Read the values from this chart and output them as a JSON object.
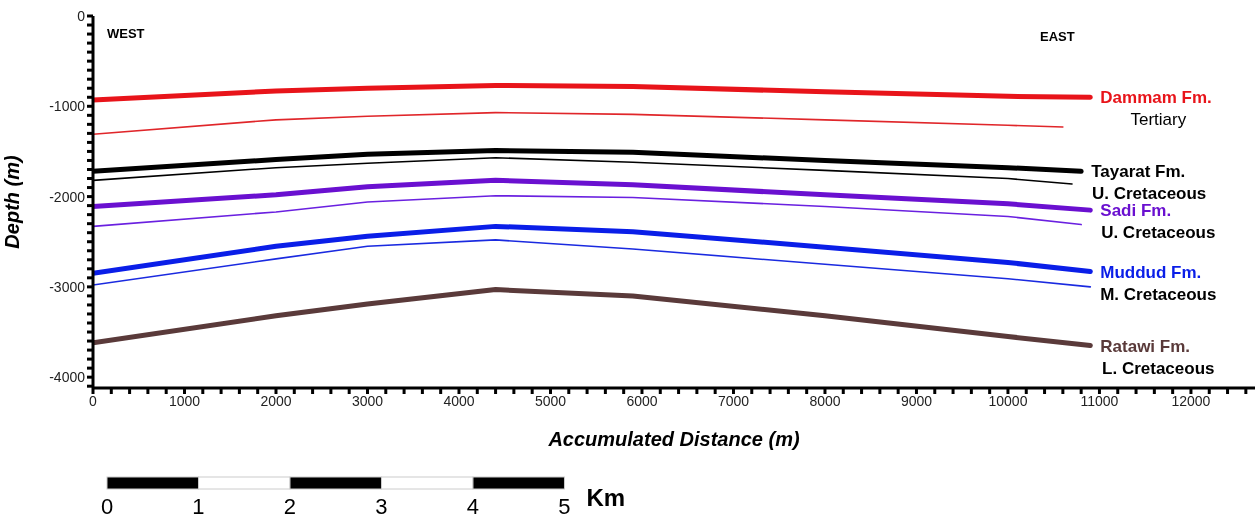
{
  "chart_data": {
    "type": "line",
    "xlabel": "Accumulated Distance (m)",
    "ylabel": "Depth (m)",
    "xlim": [
      0,
      12700
    ],
    "ylim": [
      -4120,
      0
    ],
    "xticks": [
      0,
      {
        "value": 200,
        "label": null
      },
      {
        "value": 400,
        "label": null
      },
      {
        "value": 600,
        "label": null
      },
      {
        "value": 800,
        "label": null
      },
      1000,
      {
        "value": 1200,
        "label": null
      },
      {
        "value": 1400,
        "label": null
      },
      {
        "value": 1600,
        "label": null
      },
      {
        "value": 1800,
        "label": null
      },
      2000,
      {
        "value": 2200,
        "label": null
      },
      {
        "value": 2400,
        "label": null
      },
      {
        "value": 2600,
        "label": null
      },
      {
        "value": 2800,
        "label": null
      },
      3000,
      {
        "value": 3200,
        "label": null
      },
      {
        "value": 3400,
        "label": null
      },
      {
        "value": 3600,
        "label": null
      },
      {
        "value": 3800,
        "label": null
      },
      4000,
      {
        "value": 4200,
        "label": null
      },
      {
        "value": 4400,
        "label": null
      },
      {
        "value": 4600,
        "label": null
      },
      {
        "value": 4800,
        "label": null
      },
      5000,
      {
        "value": 5200,
        "label": null
      },
      {
        "value": 5400,
        "label": null
      },
      {
        "value": 5600,
        "label": null
      },
      {
        "value": 5800,
        "label": null
      },
      6000,
      {
        "value": 6200,
        "label": null
      },
      {
        "value": 6400,
        "label": null
      },
      {
        "value": 6600,
        "label": null
      },
      {
        "value": 6800,
        "label": null
      },
      7000,
      {
        "value": 7200,
        "label": null
      },
      {
        "value": 7400,
        "label": null
      },
      {
        "value": 7600,
        "label": null
      },
      {
        "value": 7800,
        "label": null
      },
      8000,
      {
        "value": 8200,
        "label": null
      },
      {
        "value": 8400,
        "label": null
      },
      {
        "value": 8600,
        "label": null
      },
      {
        "value": 8800,
        "label": null
      },
      9000,
      {
        "value": 9200,
        "label": null
      },
      {
        "value": 9400,
        "label": null
      },
      {
        "value": 9600,
        "label": null
      },
      {
        "value": 9800,
        "label": null
      },
      10000,
      {
        "value": 10200,
        "label": null
      },
      {
        "value": 10400,
        "label": null
      },
      {
        "value": 10600,
        "label": null
      },
      {
        "value": 10800,
        "label": null
      },
      11000,
      {
        "value": 11200,
        "label": null
      },
      {
        "value": 11400,
        "label": null
      },
      {
        "value": 11600,
        "label": null
      },
      {
        "value": 11800,
        "label": null
      },
      12000,
      {
        "value": 12200,
        "label": null
      },
      {
        "value": 12400,
        "label": null
      },
      {
        "value": 12600,
        "label": null
      }
    ],
    "yticks": [
      0,
      {
        "value": -100,
        "label": null
      },
      {
        "value": -200,
        "label": null
      },
      {
        "value": -300,
        "label": null
      },
      {
        "value": -400,
        "label": null
      },
      {
        "value": -500,
        "label": null
      },
      {
        "value": -600,
        "label": null
      },
      {
        "value": -700,
        "label": null
      },
      {
        "value": -800,
        "label": null
      },
      {
        "value": -900,
        "label": null
      },
      -1000,
      {
        "value": -1100,
        "label": null
      },
      {
        "value": -1200,
        "label": null
      },
      {
        "value": -1300,
        "label": null
      },
      {
        "value": -1400,
        "label": null
      },
      {
        "value": -1500,
        "label": null
      },
      {
        "value": -1600,
        "label": null
      },
      {
        "value": -1700,
        "label": null
      },
      {
        "value": -1800,
        "label": null
      },
      {
        "value": -1900,
        "label": null
      },
      -2000,
      {
        "value": -2100,
        "label": null
      },
      {
        "value": -2200,
        "label": null
      },
      {
        "value": -2300,
        "label": null
      },
      {
        "value": -2400,
        "label": null
      },
      {
        "value": -2500,
        "label": null
      },
      {
        "value": -2600,
        "label": null
      },
      {
        "value": -2700,
        "label": null
      },
      {
        "value": -2800,
        "label": null
      },
      {
        "value": -2900,
        "label": null
      },
      -3000,
      {
        "value": -3100,
        "label": null
      },
      {
        "value": -3200,
        "label": null
      },
      {
        "value": -3300,
        "label": null
      },
      {
        "value": -3400,
        "label": null
      },
      {
        "value": -3500,
        "label": null
      },
      {
        "value": -3600,
        "label": null
      },
      {
        "value": -3700,
        "label": null
      },
      {
        "value": -3800,
        "label": null
      },
      {
        "value": -3900,
        "label": null
      },
      -4000,
      {
        "value": -4100,
        "label": null
      }
    ],
    "marker": "none",
    "line_style": "solid",
    "series": [
      {
        "name": "Dammam Fm.",
        "color": "#e8141a",
        "x": [
          0,
          2000,
          3000,
          4400,
          5900,
          8000,
          10000,
          10900
        ],
        "values": [
          -930,
          -830,
          -800,
          -770,
          -780,
          -840,
          -890,
          -900
        ]
      },
      {
        "color": "#e0262a",
        "x": [
          0,
          2000,
          3000,
          4400,
          5900,
          8000,
          10000,
          10600
        ],
        "values": [
          -1310,
          -1150,
          -1110,
          -1070,
          -1090,
          -1150,
          -1210,
          -1230
        ]
      },
      {
        "name": "Tayarat Fm.",
        "color": "#000000",
        "x": [
          0,
          2000,
          3000,
          4400,
          5900,
          8000,
          10000,
          10800
        ],
        "values": [
          -1720,
          -1590,
          -1530,
          -1490,
          -1510,
          -1600,
          -1680,
          -1720
        ]
      },
      {
        "color": "#000000",
        "x": [
          0,
          2000,
          3000,
          4400,
          5900,
          8000,
          10000,
          10700
        ],
        "values": [
          -1820,
          -1680,
          -1630,
          -1570,
          -1620,
          -1710,
          -1800,
          -1860
        ]
      },
      {
        "name": "Sadi Fm.",
        "color": "#6a10d0",
        "x": [
          0,
          2000,
          3000,
          4400,
          5900,
          8000,
          10000,
          10900
        ],
        "values": [
          -2110,
          -1980,
          -1890,
          -1820,
          -1870,
          -1980,
          -2080,
          -2150
        ]
      },
      {
        "color": "#6a20e0",
        "x": [
          0,
          2000,
          3000,
          4400,
          5900,
          8000,
          10000,
          10800
        ],
        "values": [
          -2330,
          -2170,
          -2060,
          -1990,
          -2010,
          -2110,
          -2220,
          -2310
        ]
      },
      {
        "name": "Muddud Fm.",
        "color": "#0a1ee8",
        "x": [
          0,
          2000,
          3000,
          4400,
          5900,
          8000,
          10000,
          10900
        ],
        "values": [
          -2850,
          -2550,
          -2440,
          -2330,
          -2390,
          -2560,
          -2730,
          -2830
        ]
      },
      {
        "color": "#1a2ae0",
        "x": [
          0,
          2000,
          3000,
          4400,
          5900,
          8000,
          10000,
          10900
        ],
        "values": [
          -2980,
          -2690,
          -2550,
          -2480,
          -2580,
          -2750,
          -2910,
          -3000
        ]
      },
      {
        "name": "Ratawi Fm.",
        "color": "#5a3a3a",
        "x": [
          0,
          2000,
          3000,
          4400,
          5900,
          8000,
          10000,
          10900
        ],
        "values": [
          -3620,
          -3320,
          -3190,
          -3030,
          -3100,
          -3320,
          -3550,
          -3650
        ]
      }
    ],
    "annotations": [
      "WEST",
      "EAST",
      "Tertiary",
      "U. Cretaceous",
      "U. Cretaceous",
      "M. Cretaceous",
      "L. Cretaceous",
      "0",
      "1",
      "2",
      "3",
      "4",
      "5",
      "Km"
    ]
  }
}
